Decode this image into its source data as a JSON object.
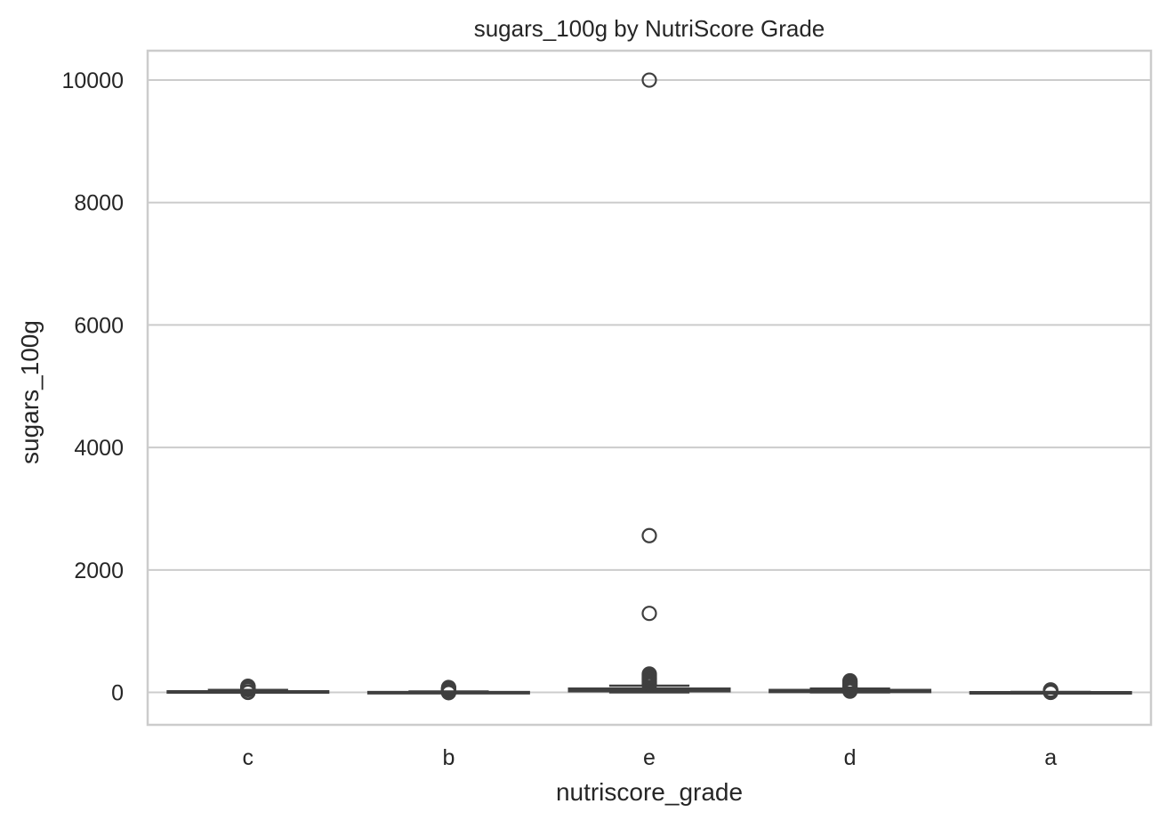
{
  "chart_data": {
    "type": "box",
    "title": "sugars_100g by NutriScore Grade",
    "xlabel": "nutriscore_grade",
    "ylabel": "sugars_100g",
    "categories": [
      "c",
      "b",
      "e",
      "d",
      "a"
    ],
    "ylim": [
      -530,
      10480
    ],
    "yticks": [
      0,
      2000,
      4000,
      6000,
      8000,
      10000
    ],
    "grid": true,
    "style": {
      "box_edge": "#3f3f3f",
      "grid": "#cccccc",
      "spine": "#cccccc",
      "background": "#ffffff"
    },
    "boxes": [
      {
        "category": "c",
        "whislo": 0,
        "q1": 3,
        "med": 8,
        "q3": 18,
        "whishi": 40,
        "fliers": [
          45,
          50,
          55,
          60,
          65,
          70,
          75,
          80,
          85,
          90,
          95,
          100,
          0,
          5,
          10
        ]
      },
      {
        "category": "b",
        "whislo": 0,
        "q1": 1,
        "med": 3,
        "q3": 6,
        "whishi": 14,
        "fliers": [
          15,
          20,
          30,
          40,
          50,
          60,
          70,
          80,
          -5,
          0,
          5
        ]
      },
      {
        "category": "e",
        "whislo": 0,
        "q1": 18,
        "med": 40,
        "q3": 62,
        "whishi": 110,
        "fliers": [
          120,
          140,
          160,
          180,
          200,
          220,
          240,
          260,
          280,
          300,
          1290,
          2560,
          10000
        ]
      },
      {
        "category": "d",
        "whislo": 0,
        "q1": 5,
        "med": 15,
        "q3": 40,
        "whishi": 62,
        "fliers": [
          70,
          90,
          110,
          130,
          150,
          170,
          190,
          20,
          40,
          60
        ]
      },
      {
        "category": "a",
        "whislo": 0,
        "q1": 1,
        "med": 2,
        "q3": 4,
        "whishi": 8,
        "fliers": [
          10,
          15,
          20,
          25,
          30,
          35,
          40,
          0,
          5
        ]
      }
    ]
  }
}
